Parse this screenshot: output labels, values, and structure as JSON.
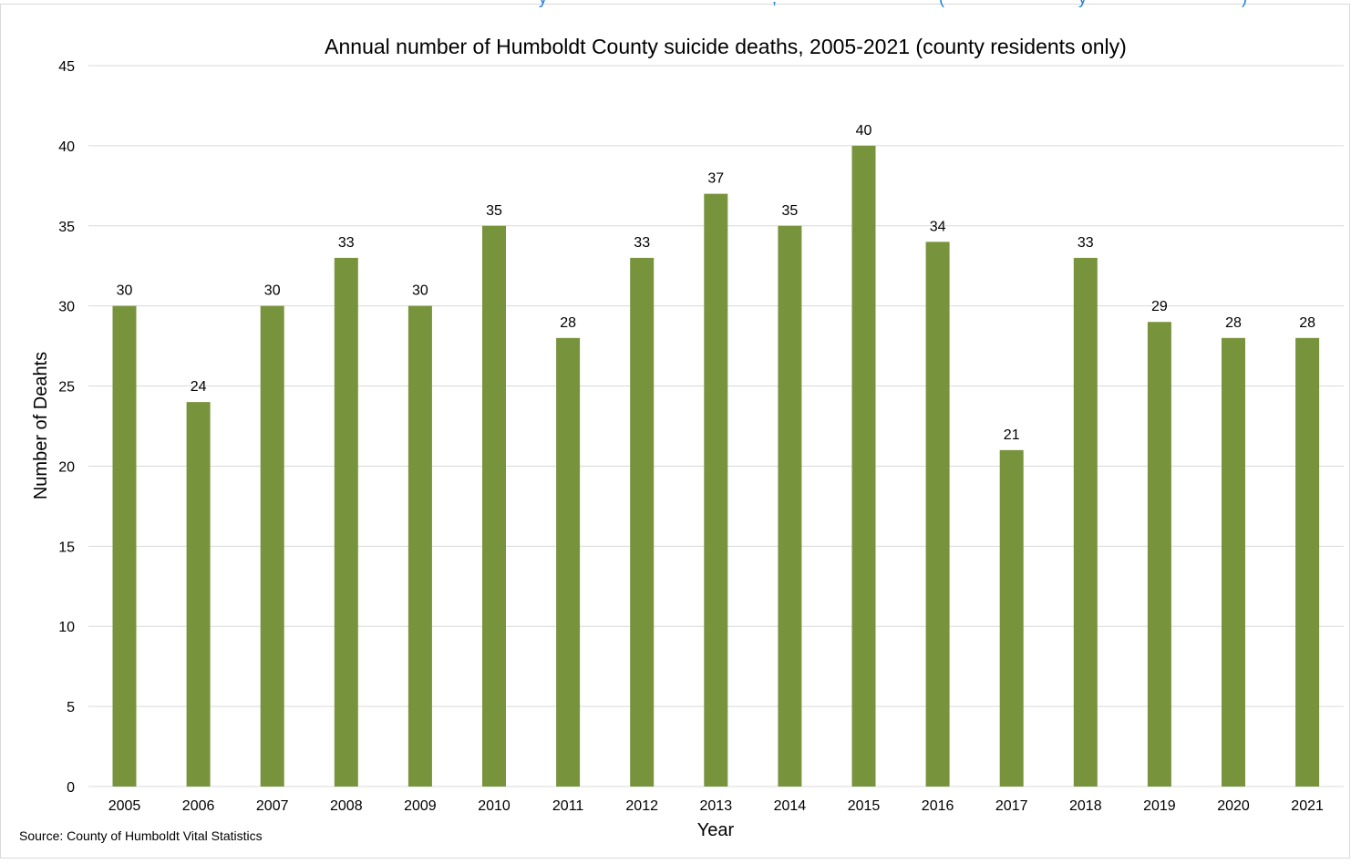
{
  "colors": {
    "bar": "#77933c",
    "grid": "#d9d9d9",
    "frame": "#d9d9d9",
    "text": "#000000",
    "top_strip_text": "#1f7fd6"
  },
  "top_strip": {
    "fragments": [
      "y",
      ",",
      "(",
      "y",
      ")"
    ]
  },
  "chart_data": {
    "type": "bar",
    "title": "Annual number of Humboldt County suicide deaths, 2005-2021 (county residents only)",
    "xlabel": "Year",
    "ylabel": "Number of Deahts",
    "categories": [
      "2005",
      "2006",
      "2007",
      "2008",
      "2009",
      "2010",
      "2011",
      "2012",
      "2013",
      "2014",
      "2015",
      "2016",
      "2017",
      "2018",
      "2019",
      "2020",
      "2021"
    ],
    "values": [
      30,
      24,
      30,
      33,
      30,
      35,
      28,
      33,
      37,
      35,
      40,
      34,
      21,
      33,
      29,
      28,
      28
    ],
    "ylim": [
      0,
      45
    ],
    "yticks": [
      0,
      5,
      10,
      15,
      20,
      25,
      30,
      35,
      40,
      45
    ],
    "grid": true,
    "data_labels": true,
    "legend": "none",
    "source": "Source: County of Humboldt  Vital Statistics"
  }
}
